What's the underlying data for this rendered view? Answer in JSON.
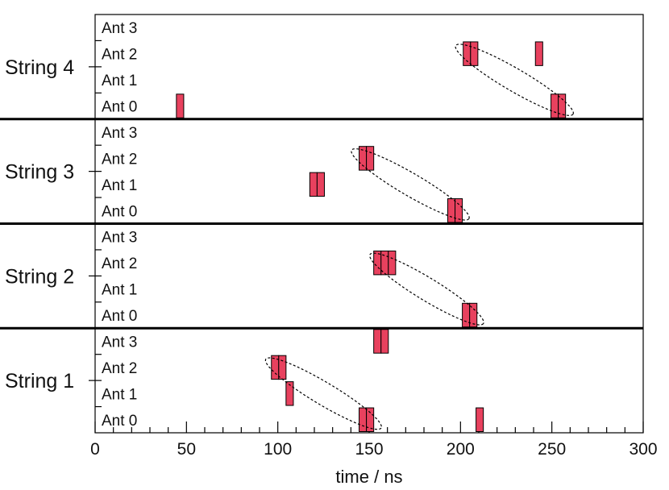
{
  "chart_data": {
    "type": "timeline",
    "title": "",
    "xlabel": "time / ns",
    "xlim": [
      0,
      300
    ],
    "x_ticks": [
      {
        "value": 0,
        "label": "0"
      },
      {
        "value": 50,
        "label": "50"
      },
      {
        "value": 100,
        "label": "100"
      },
      {
        "value": 150,
        "label": "150"
      },
      {
        "value": 200,
        "label": "200"
      },
      {
        "value": 250,
        "label": "250"
      },
      {
        "value": 300,
        "label": "300"
      }
    ],
    "minor_tick_step": 10,
    "antenna_labels": [
      "Ant 0",
      "Ant 1",
      "Ant 2",
      "Ant 3"
    ],
    "bar_color": "#e8415e",
    "strings": [
      {
        "label": "String 4",
        "hits": [
          {
            "antenna": 2,
            "start": 201.5,
            "end": 205.5
          },
          {
            "antenna": 2,
            "start": 205.5,
            "end": 209.5
          },
          {
            "antenna": 2,
            "start": 241,
            "end": 245
          },
          {
            "antenna": 0,
            "start": 44.5,
            "end": 48.5
          },
          {
            "antenna": 0,
            "start": 249.5,
            "end": 253.5
          },
          {
            "antenna": 0,
            "start": 253.5,
            "end": 257.5
          }
        ],
        "ellipse": {
          "from": {
            "time": 205,
            "antenna": 2
          },
          "to": {
            "time": 254,
            "antenna": 0
          }
        }
      },
      {
        "label": "String 3",
        "hits": [
          {
            "antenna": 2,
            "start": 144.5,
            "end": 148.5
          },
          {
            "antenna": 2,
            "start": 148.5,
            "end": 152.5
          },
          {
            "antenna": 1,
            "start": 117.5,
            "end": 121.5
          },
          {
            "antenna": 1,
            "start": 121.5,
            "end": 125.5
          },
          {
            "antenna": 0,
            "start": 193,
            "end": 197
          },
          {
            "antenna": 0,
            "start": 197,
            "end": 201
          }
        ],
        "ellipse": {
          "from": {
            "time": 148,
            "antenna": 2
          },
          "to": {
            "time": 197,
            "antenna": 0
          }
        }
      },
      {
        "label": "String 2",
        "hits": [
          {
            "antenna": 2,
            "start": 152.5,
            "end": 156.5
          },
          {
            "antenna": 2,
            "start": 156.5,
            "end": 160.5
          },
          {
            "antenna": 2,
            "start": 160.5,
            "end": 164.5
          },
          {
            "antenna": 0,
            "start": 201,
            "end": 205
          },
          {
            "antenna": 0,
            "start": 205,
            "end": 209
          }
        ],
        "ellipse": {
          "from": {
            "time": 158,
            "antenna": 2
          },
          "to": {
            "time": 205,
            "antenna": 0
          }
        }
      },
      {
        "label": "String 1",
        "hits": [
          {
            "antenna": 3,
            "start": 152.5,
            "end": 156.5
          },
          {
            "antenna": 3,
            "start": 156.5,
            "end": 160.5
          },
          {
            "antenna": 2,
            "start": 96.5,
            "end": 100.5
          },
          {
            "antenna": 2,
            "start": 100.5,
            "end": 104.5
          },
          {
            "antenna": 1,
            "start": 104.5,
            "end": 108.5
          },
          {
            "antenna": 0,
            "start": 144.5,
            "end": 148.5
          },
          {
            "antenna": 0,
            "start": 148.5,
            "end": 152.5
          },
          {
            "antenna": 0,
            "start": 208.5,
            "end": 212.5
          }
        ],
        "ellipse": {
          "from": {
            "time": 101,
            "antenna": 2
          },
          "to": {
            "time": 149,
            "antenna": 0
          }
        }
      }
    ]
  }
}
